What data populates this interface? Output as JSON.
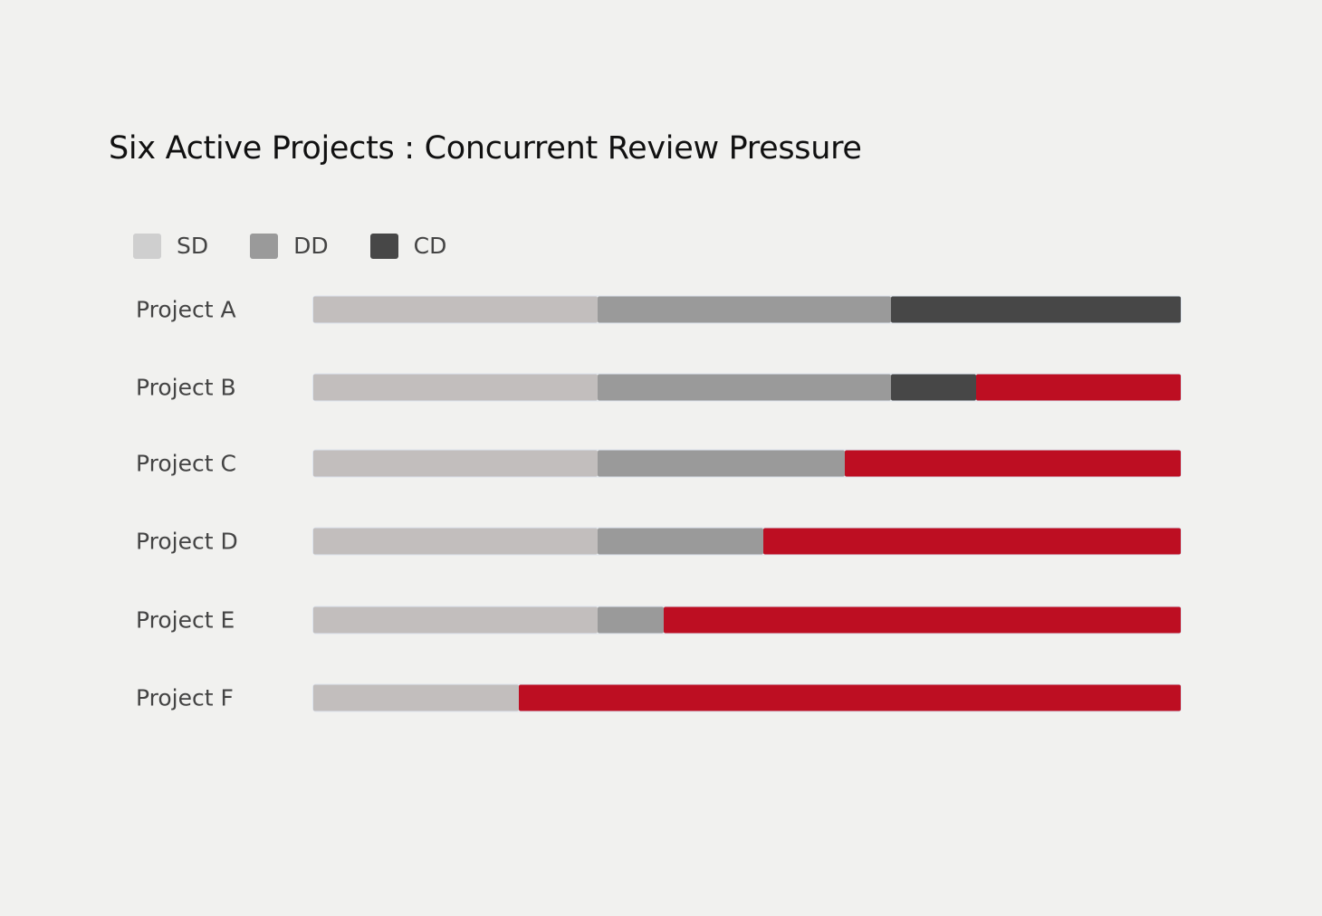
{
  "chart_data": {
    "type": "bar",
    "orientation": "horizontal",
    "stacked": true,
    "title": "Six Active Projects : Concurrent Review Pressure",
    "xlabel": "",
    "ylabel": "",
    "xlim": [
      0,
      100
    ],
    "grid": false,
    "legend_placement": "top-left",
    "legend": [
      {
        "label": "SD",
        "color": "#cfcfcf"
      },
      {
        "label": "DD",
        "color": "#9a9a9a"
      },
      {
        "label": "CD",
        "color": "#474747"
      }
    ],
    "colors": {
      "SD": "#c2bebd",
      "DD": "#9a9a9a",
      "CD": "#474747",
      "unnamed": "#bd0e22"
    },
    "categories": [
      "Project A",
      "Project B",
      "Project C",
      "Project D",
      "Project E",
      "Project F"
    ],
    "rows": [
      {
        "label": "Project A",
        "segments": [
          {
            "phase": "SD",
            "start": 0,
            "end": 32.8
          },
          {
            "phase": "DD",
            "start": 32.8,
            "end": 66.6
          },
          {
            "phase": "CD",
            "start": 66.6,
            "end": 100
          }
        ]
      },
      {
        "label": "Project B",
        "segments": [
          {
            "phase": "SD",
            "start": 0,
            "end": 32.8
          },
          {
            "phase": "DD",
            "start": 32.8,
            "end": 66.6
          },
          {
            "phase": "CD",
            "start": 66.6,
            "end": 76.4
          },
          {
            "phase": "unnamed",
            "start": 76.4,
            "end": 100
          }
        ]
      },
      {
        "label": "Project C",
        "segments": [
          {
            "phase": "SD",
            "start": 0,
            "end": 32.8
          },
          {
            "phase": "DD",
            "start": 32.8,
            "end": 61.3
          },
          {
            "phase": "unnamed",
            "start": 61.3,
            "end": 100
          }
        ]
      },
      {
        "label": "Project D",
        "segments": [
          {
            "phase": "SD",
            "start": 0,
            "end": 32.8
          },
          {
            "phase": "DD",
            "start": 32.8,
            "end": 51.9
          },
          {
            "phase": "unnamed",
            "start": 51.9,
            "end": 100
          }
        ]
      },
      {
        "label": "Project E",
        "segments": [
          {
            "phase": "SD",
            "start": 0,
            "end": 32.8
          },
          {
            "phase": "DD",
            "start": 32.8,
            "end": 40.4
          },
          {
            "phase": "unnamed",
            "start": 40.4,
            "end": 100
          }
        ]
      },
      {
        "label": "Project F",
        "segments": [
          {
            "phase": "SD",
            "start": 0,
            "end": 23.7
          },
          {
            "phase": "unnamed",
            "start": 23.7,
            "end": 100
          }
        ]
      }
    ]
  }
}
